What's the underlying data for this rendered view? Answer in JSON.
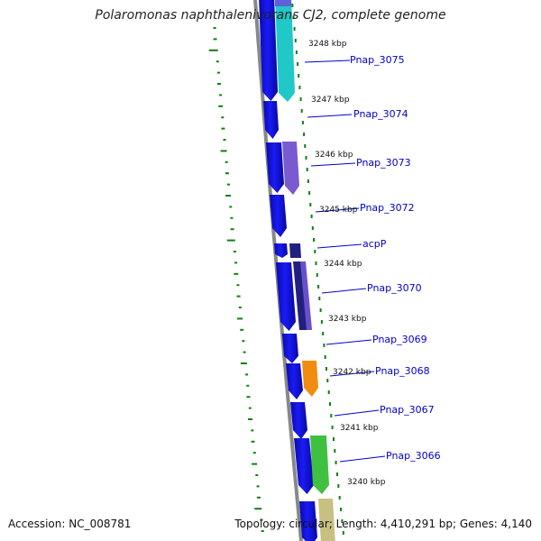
{
  "title": "Polaromonas naphthalenivorans CJ2, complete genome",
  "accession_text": "Accession: NC_008781",
  "summary_text": "Topology: circular; Length: 4,410,291 bp; Genes: 4,140",
  "colors": {
    "cds": "#1010e0",
    "backbone": "#888888",
    "gc_skew": "#108010",
    "label": "#0000cc"
  },
  "position_labels": [
    "3248 kbp",
    "3247 kbp",
    "3246 kbp",
    "3245 kbp",
    "3244 kbp",
    "3243 kbp",
    "3242 kbp",
    "3241 kbp",
    "3240 kbp"
  ],
  "gene_labels": [
    "Pnap_3075",
    "Pnap_3074",
    "Pnap_3073",
    "Pnap_3072",
    "acpP",
    "Pnap_3070",
    "Pnap_3069",
    "Pnap_3068",
    "Pnap_3067",
    "Pnap_3066"
  ],
  "feature_colors": {
    "Pnap_3075": "#20c8c8",
    "Pnap_3073": "#7a5ad0",
    "acpP": "#202080",
    "Pnap_3070": "#6a50c8",
    "Pnap_3068": "#f08c10",
    "Pnap_3066": "#40c040",
    "unlabeled_bottom": "#c8c080"
  }
}
